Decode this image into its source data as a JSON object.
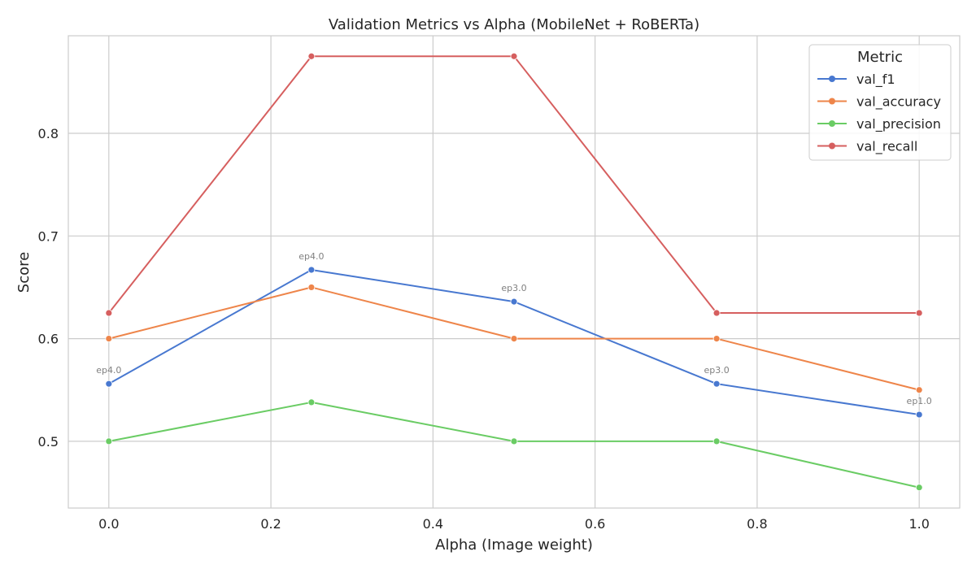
{
  "chart_data": {
    "type": "line",
    "title": "Validation Metrics vs Alpha (MobileNet + RoBERTa)",
    "xlabel": "Alpha (Image weight)",
    "ylabel": "Score",
    "x": [
      0.0,
      0.25,
      0.5,
      0.75,
      1.0
    ],
    "xlim": [
      -0.05,
      1.05
    ],
    "ylim": [
      0.435,
      0.895
    ],
    "xticks": [
      0.0,
      0.2,
      0.4,
      0.6,
      0.8,
      1.0
    ],
    "xtick_labels": [
      "0.0",
      "0.2",
      "0.4",
      "0.6",
      "0.8",
      "1.0"
    ],
    "yticks": [
      0.5,
      0.6,
      0.7,
      0.8
    ],
    "ytick_labels": [
      "0.5",
      "0.6",
      "0.7",
      "0.8"
    ],
    "grid": true,
    "legend": {
      "title": "Metric",
      "position": "top-right"
    },
    "series": [
      {
        "name": "val_f1",
        "color": "#4878d0",
        "values": [
          0.556,
          0.667,
          0.636,
          0.556,
          0.526
        ]
      },
      {
        "name": "val_accuracy",
        "color": "#ee854a",
        "values": [
          0.6,
          0.65,
          0.6,
          0.6,
          0.55
        ]
      },
      {
        "name": "val_precision",
        "color": "#6acc64",
        "values": [
          0.5,
          0.538,
          0.5,
          0.5,
          0.455
        ]
      },
      {
        "name": "val_recall",
        "color": "#d65f5f",
        "values": [
          0.625,
          0.875,
          0.875,
          0.625,
          0.625
        ]
      }
    ],
    "annotations": [
      {
        "x": 0.0,
        "y": 0.556,
        "text": "ep4.0"
      },
      {
        "x": 0.25,
        "y": 0.667,
        "text": "ep4.0"
      },
      {
        "x": 0.5,
        "y": 0.636,
        "text": "ep3.0"
      },
      {
        "x": 0.75,
        "y": 0.556,
        "text": "ep3.0"
      },
      {
        "x": 1.0,
        "y": 0.526,
        "text": "ep1.0"
      }
    ]
  }
}
